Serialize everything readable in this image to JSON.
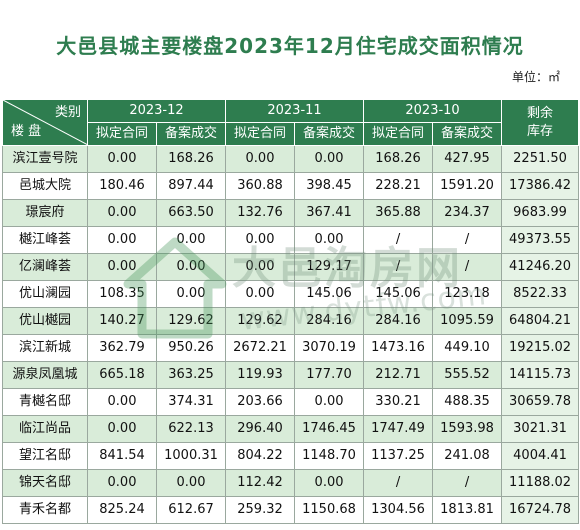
{
  "title": "大邑县城主要楼盘2023年12月住宅成交面积情况",
  "unit": "单位：㎡",
  "header": {
    "corner_top": "类别",
    "corner_bottom": "楼 盘",
    "months": [
      "2023-12",
      "2023-11",
      "2023-10"
    ],
    "sub": [
      "拟定合同",
      "备案成交"
    ],
    "stock_label_1": "剩余",
    "stock_label_2": "库存"
  },
  "watermark": {
    "brand": "大邑淘房网",
    "url": "www.dytfw.com"
  },
  "rows": [
    {
      "name": "滨江壹号院",
      "v": [
        "0.00",
        "168.26",
        "0.00",
        "0.00",
        "168.26",
        "427.95"
      ],
      "stock": "2251.50"
    },
    {
      "name": "邑城大院",
      "v": [
        "180.46",
        "897.44",
        "360.88",
        "398.45",
        "228.21",
        "1591.20"
      ],
      "stock": "17386.42"
    },
    {
      "name": "璟宸府",
      "v": [
        "0.00",
        "663.50",
        "132.76",
        "367.41",
        "365.88",
        "234.37"
      ],
      "stock": "9683.99"
    },
    {
      "name": "樾江峰荟",
      "v": [
        "0.00",
        "0.00",
        "0.00",
        "0.00",
        "/",
        "/"
      ],
      "stock": "49373.55"
    },
    {
      "name": "亿澜峰荟",
      "v": [
        "0.00",
        "0.00",
        "0.00",
        "129.17",
        "/",
        "/"
      ],
      "stock": "41246.20"
    },
    {
      "name": "优山澜园",
      "v": [
        "108.35",
        "0.00",
        "0.00",
        "145.06",
        "145.06",
        "123.18"
      ],
      "stock": "8522.33"
    },
    {
      "name": "优山樾园",
      "v": [
        "140.27",
        "129.62",
        "129.62",
        "284.16",
        "284.16",
        "1095.59"
      ],
      "stock": "64804.21"
    },
    {
      "name": "滨江新城",
      "v": [
        "362.79",
        "950.26",
        "2672.21",
        "3070.19",
        "1473.16",
        "449.10"
      ],
      "stock": "19215.02"
    },
    {
      "name": "源泉凤凰城",
      "v": [
        "665.18",
        "363.25",
        "119.93",
        "177.70",
        "212.71",
        "555.52"
      ],
      "stock": "14115.73"
    },
    {
      "name": "青樾名邸",
      "v": [
        "0.00",
        "374.31",
        "203.66",
        "0.00",
        "330.21",
        "488.35"
      ],
      "stock": "30659.78"
    },
    {
      "name": "临江尚品",
      "v": [
        "0.00",
        "622.13",
        "296.40",
        "1746.45",
        "1747.49",
        "1593.98"
      ],
      "stock": "3021.31"
    },
    {
      "name": "望江名邸",
      "v": [
        "841.54",
        "1000.31",
        "804.22",
        "1148.70",
        "1137.25",
        "241.08"
      ],
      "stock": "4004.41"
    },
    {
      "name": "锦天名邸",
      "v": [
        "0.00",
        "0.00",
        "112.42",
        "0.00",
        "/",
        "/"
      ],
      "stock": "11188.02"
    },
    {
      "name": "青禾名都",
      "v": [
        "825.24",
        "612.67",
        "259.32",
        "1150.68",
        "1304.56",
        "1813.81"
      ],
      "stock": "16724.78"
    }
  ]
}
